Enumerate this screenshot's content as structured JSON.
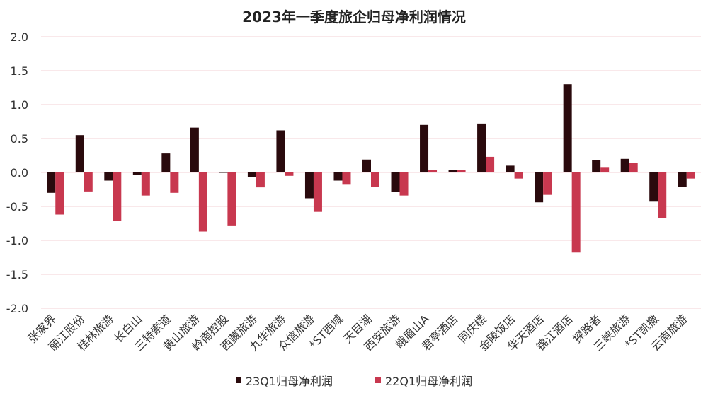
{
  "chart_data": {
    "type": "bar",
    "title": "2023年一季度旅企归母净利润情况",
    "categories": [
      "张家界",
      "丽江股份",
      "桂林旅游",
      "长白山",
      "三特索道",
      "黄山旅游",
      "岭南控股",
      "西藏旅游",
      "九华旅游",
      "众信旅游",
      "*ST西域",
      "天目湖",
      "西安旅游",
      "峨眉山A",
      "君亭酒店",
      "同庆楼",
      "金陵饭店",
      "华天酒店",
      "锦江酒店",
      "探路者",
      "三峡旅游",
      "*ST凯撒",
      "云南旅游"
    ],
    "series": [
      {
        "name": "23Q1归母净利润",
        "color": "#2a0a0d",
        "values": [
          -0.3,
          0.55,
          -0.12,
          -0.04,
          0.28,
          0.66,
          0.0,
          -0.07,
          0.62,
          -0.38,
          -0.12,
          0.19,
          -0.29,
          0.7,
          0.04,
          0.72,
          0.1,
          -0.44,
          1.3,
          0.18,
          0.2,
          -0.43,
          -0.21
        ]
      },
      {
        "name": "22Q1归母净利润",
        "color": "#c8384f",
        "values": [
          -0.62,
          -0.28,
          -0.71,
          -0.34,
          -0.3,
          -0.87,
          -0.78,
          -0.22,
          -0.05,
          -0.58,
          -0.17,
          -0.21,
          -0.34,
          0.04,
          0.04,
          0.23,
          -0.09,
          -0.33,
          -1.18,
          0.08,
          0.14,
          -0.67,
          -0.09
        ]
      }
    ],
    "yticks": [
      "2.0",
      "1.5",
      "1.0",
      "0.5",
      "0.0",
      "-0.5",
      "-1.0",
      "-1.5",
      "-2.0"
    ],
    "ylim": [
      -2.0,
      2.0
    ],
    "legend": "bottom",
    "grid": true
  }
}
